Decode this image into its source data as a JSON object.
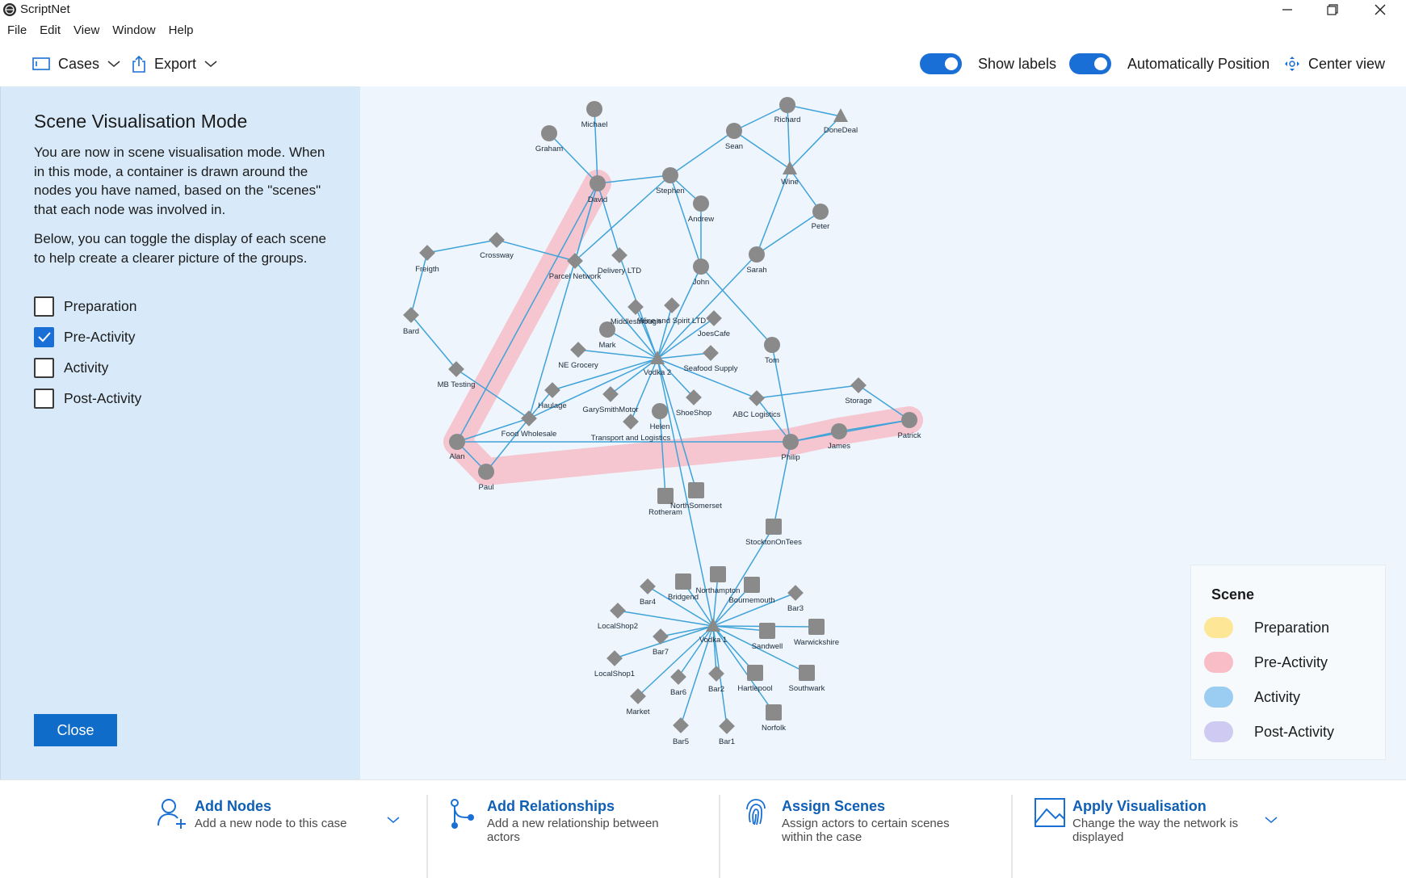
{
  "app": {
    "title": "ScriptNet"
  },
  "menu": [
    "File",
    "Edit",
    "View",
    "Window",
    "Help"
  ],
  "toolbar": {
    "cases_label": "Cases",
    "export_label": "Export",
    "show_labels_label": "Show labels",
    "show_labels_on": true,
    "auto_position_label": "Automatically Position",
    "auto_position_on": true,
    "center_view_label": "Center view"
  },
  "sidebar": {
    "title": "Scene Visualisation Mode",
    "paragraph1": "You are now in scene visualisation mode. When in this mode, a container is drawn around the nodes you have named, based on the \"scenes\" that each node was involved in.",
    "paragraph2": "Below, you can toggle the display of each scene to help create a clearer picture of the groups.",
    "scenes": [
      {
        "label": "Preparation",
        "checked": false
      },
      {
        "label": "Pre-Activity",
        "checked": true
      },
      {
        "label": "Activity",
        "checked": false
      },
      {
        "label": "Post-Activity",
        "checked": false
      }
    ],
    "close_label": "Close"
  },
  "legend": {
    "title": "Scene",
    "items": [
      {
        "label": "Preparation",
        "color": "#fde38a"
      },
      {
        "label": "Pre-Activity",
        "color": "#f7b6c0"
      },
      {
        "label": "Activity",
        "color": "#8fc8f0"
      },
      {
        "label": "Post-Activity",
        "color": "#c9c4f0"
      }
    ]
  },
  "graph": {
    "node_color": "#8a8a8a",
    "edge_color": "#3fa3d9",
    "scene_hull_color": "#f7b6c0",
    "labels": {
      "michael": "Michael",
      "graham": "Graham",
      "david": "David",
      "stephen": "Stephen",
      "andrew": "Andrew",
      "sean": "Sean",
      "richard": "Richard",
      "donedeal": "DoneDeal",
      "wine": "Wine",
      "peter": "Peter",
      "sarah": "Sarah",
      "john": "John",
      "freigth": "Freigth",
      "crossway": "Crossway",
      "parcel": "Parcel Network",
      "delivery": "Delivery LTD",
      "bard": "Bard",
      "middlesbrough": "Middlesbrough",
      "wineSpirit": "Wine and Spirit LTD",
      "joescafe": "JoesCafe",
      "mark": "Mark",
      "negrocery": "NE Grocery",
      "vodka2": "Vodka 2",
      "seafood": "Seafood Supply",
      "tom": "Tom",
      "mbtesting": "MB Testing",
      "haulage": "Haulage",
      "garysmith": "GarySmithMotor",
      "shoeshop": "ShoeShop",
      "abc": "ABC Logistics",
      "storage": "Storage",
      "foodwholesale": "Food Wholesale",
      "transport": "Transport and Logistics",
      "helen": "Helen",
      "james": "James",
      "patrick": "Patrick",
      "alan": "Alan",
      "paul": "Paul",
      "philip": "Philip",
      "rotheram": "Rotheram",
      "northsomerset": "NorthSomerset",
      "stockton": "StocktonOnTees",
      "northampton": "Northampton",
      "bar4": "Bar4",
      "bridgend": "Bridgend",
      "bournemouth": "Bournemouth",
      "bar3": "Bar3",
      "localshop2": "LocalShop2",
      "vodka1": "Vodka 1",
      "sandwell": "Sandwell",
      "warwickshire": "Warwickshire",
      "bar7": "Bar7",
      "localshop1": "LocalShop1",
      "bar6": "Bar6",
      "bar2": "Bar2",
      "hartlepool": "Hartlepool",
      "southwark": "Southwark",
      "market": "Market",
      "norfolk": "Norfolk",
      "bar5": "Bar5",
      "bar1": "Bar1"
    }
  },
  "commands": [
    {
      "title": "Add Nodes",
      "desc": "Add a new node to this case"
    },
    {
      "title": "Add Relationships",
      "desc": "Add a new relationship between actors"
    },
    {
      "title": "Assign Scenes",
      "desc": "Assign actors to certain scenes within the case"
    },
    {
      "title": "Apply Visualisation",
      "desc": "Change the way the network is displayed"
    }
  ]
}
